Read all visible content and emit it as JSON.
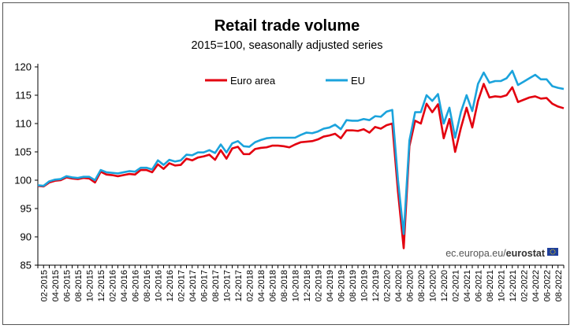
{
  "chart_data": {
    "type": "line",
    "title": "Retail trade volume",
    "subtitle": "2015=100, seasonally adjusted series",
    "xlabel": "",
    "ylabel": "",
    "ylim": [
      85,
      120
    ],
    "yticks": [
      85,
      90,
      95,
      100,
      105,
      110,
      115,
      120
    ],
    "grid": false,
    "legend_position": "top-center",
    "source_prefix": "ec.europa.eu/",
    "source_brand": "eurostat",
    "x_tick_labels": [
      "02-2015",
      "04-2015",
      "06-2015",
      "08-2015",
      "10-2015",
      "12-2015",
      "02-2016",
      "04-2016",
      "06-2016",
      "08-2016",
      "10-2016",
      "12-2016",
      "02-2017",
      "04-2017",
      "06-2017",
      "08-2017",
      "10-2017",
      "12-2017",
      "02-2018",
      "04-2018",
      "06-2018",
      "08-2018",
      "10-2018",
      "12-2018",
      "02-2019",
      "04-2019",
      "06-2019",
      "08-2019",
      "10-2019",
      "12-2019",
      "02-2020",
      "04-2020",
      "06-2020",
      "08-2020",
      "10-2020",
      "12-2020",
      "02-2021",
      "04-2021",
      "06-2021",
      "08-2021",
      "10-2021",
      "12-2021",
      "02-2022",
      "04-2022",
      "06-2022",
      "08-2022"
    ],
    "x_start": "01-2015",
    "x_end": "08-2022",
    "series": [
      {
        "name": "Euro area",
        "color": "#e3000f",
        "values": [
          99.0,
          98.9,
          99.6,
          99.9,
          100.0,
          100.5,
          100.3,
          100.2,
          100.4,
          100.3,
          99.6,
          101.5,
          101.0,
          100.9,
          100.7,
          100.9,
          101.1,
          101.0,
          101.8,
          101.8,
          101.4,
          102.8,
          102.0,
          103.0,
          102.6,
          102.7,
          103.8,
          103.5,
          104.0,
          104.2,
          104.5,
          103.6,
          105.3,
          103.8,
          105.6,
          105.9,
          104.6,
          104.6,
          105.5,
          105.7,
          105.8,
          106.1,
          106.1,
          106.0,
          105.8,
          106.3,
          106.7,
          106.8,
          106.9,
          107.2,
          107.7,
          107.9,
          108.2,
          107.4,
          108.8,
          108.8,
          108.7,
          109.0,
          108.4,
          109.4,
          109.1,
          109.7,
          110.0,
          98.0,
          88.0,
          106.0,
          110.5,
          110.0,
          113.5,
          112.0,
          113.4,
          107.4,
          110.8,
          105.0,
          109.2,
          112.8,
          109.3,
          114.0,
          117.0,
          114.6,
          114.8,
          114.7,
          115.0,
          116.4,
          113.8,
          114.2,
          114.6,
          114.8,
          114.4,
          114.5,
          113.5,
          113.0,
          112.7
        ]
      },
      {
        "name": "EU",
        "color": "#1ba3dc",
        "values": [
          99.1,
          99.0,
          99.8,
          100.1,
          100.2,
          100.7,
          100.5,
          100.4,
          100.6,
          100.6,
          100.0,
          101.8,
          101.4,
          101.3,
          101.2,
          101.4,
          101.6,
          101.5,
          102.2,
          102.2,
          101.9,
          103.5,
          102.7,
          103.6,
          103.3,
          103.5,
          104.5,
          104.4,
          104.9,
          104.9,
          105.3,
          104.8,
          106.3,
          104.9,
          106.5,
          106.9,
          106.0,
          105.9,
          106.7,
          107.1,
          107.4,
          107.5,
          107.5,
          107.5,
          107.5,
          107.5,
          108.0,
          108.4,
          108.3,
          108.6,
          109.1,
          109.3,
          109.8,
          109.0,
          110.6,
          110.5,
          110.5,
          110.8,
          110.6,
          111.3,
          111.2,
          112.1,
          112.4,
          100.0,
          90.5,
          107.0,
          112.0,
          112.0,
          115.0,
          114.0,
          115.2,
          110.0,
          112.8,
          107.5,
          112.0,
          115.0,
          112.2,
          117.0,
          119.0,
          117.2,
          117.5,
          117.5,
          118.0,
          119.3,
          116.8,
          117.4,
          118.0,
          118.6,
          117.8,
          117.8,
          116.6,
          116.3,
          116.1
        ]
      }
    ]
  }
}
